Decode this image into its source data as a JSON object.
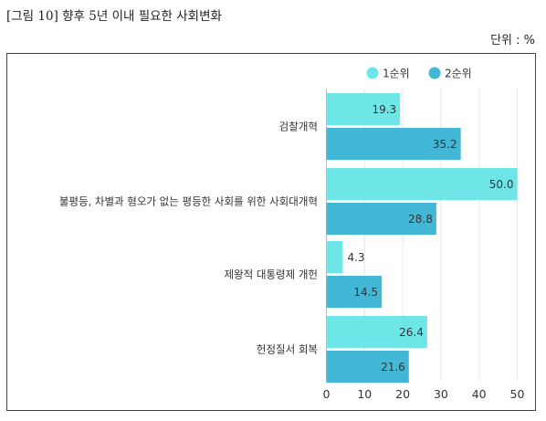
{
  "figure": {
    "title": "[그림 10] 향후 5년 이내 필요한 사회변화",
    "unit_label": "단위 : %"
  },
  "chart_data": {
    "type": "bar",
    "orientation": "horizontal",
    "title": "",
    "xlabel": "",
    "ylabel": "",
    "categories": [
      "검찰개혁",
      "불평등, 차별과 혐오가 없는 평등한 사회를 위한 사회대개혁",
      "제왕적 대통령제 개헌",
      "헌정질서 회복"
    ],
    "series": [
      {
        "name": "1순위",
        "values": [
          19.3,
          50.0,
          4.3,
          26.4
        ],
        "color": "#6ee6e8"
      },
      {
        "name": "2순위",
        "values": [
          35.2,
          28.8,
          14.5,
          21.6
        ],
        "color": "#43b7d6"
      }
    ],
    "value_labels": [
      [
        "19.3",
        "50.0",
        "4.3",
        "26.4"
      ],
      [
        "35.2",
        "28.8",
        "14.5",
        "21.6"
      ]
    ],
    "xlim": [
      0,
      50
    ],
    "ticks": [
      0,
      10,
      20,
      30,
      40,
      50
    ],
    "tick_labels": [
      "0",
      "10",
      "20",
      "30",
      "40",
      "50"
    ],
    "grid": "vertical",
    "legend_position": "top-right"
  }
}
